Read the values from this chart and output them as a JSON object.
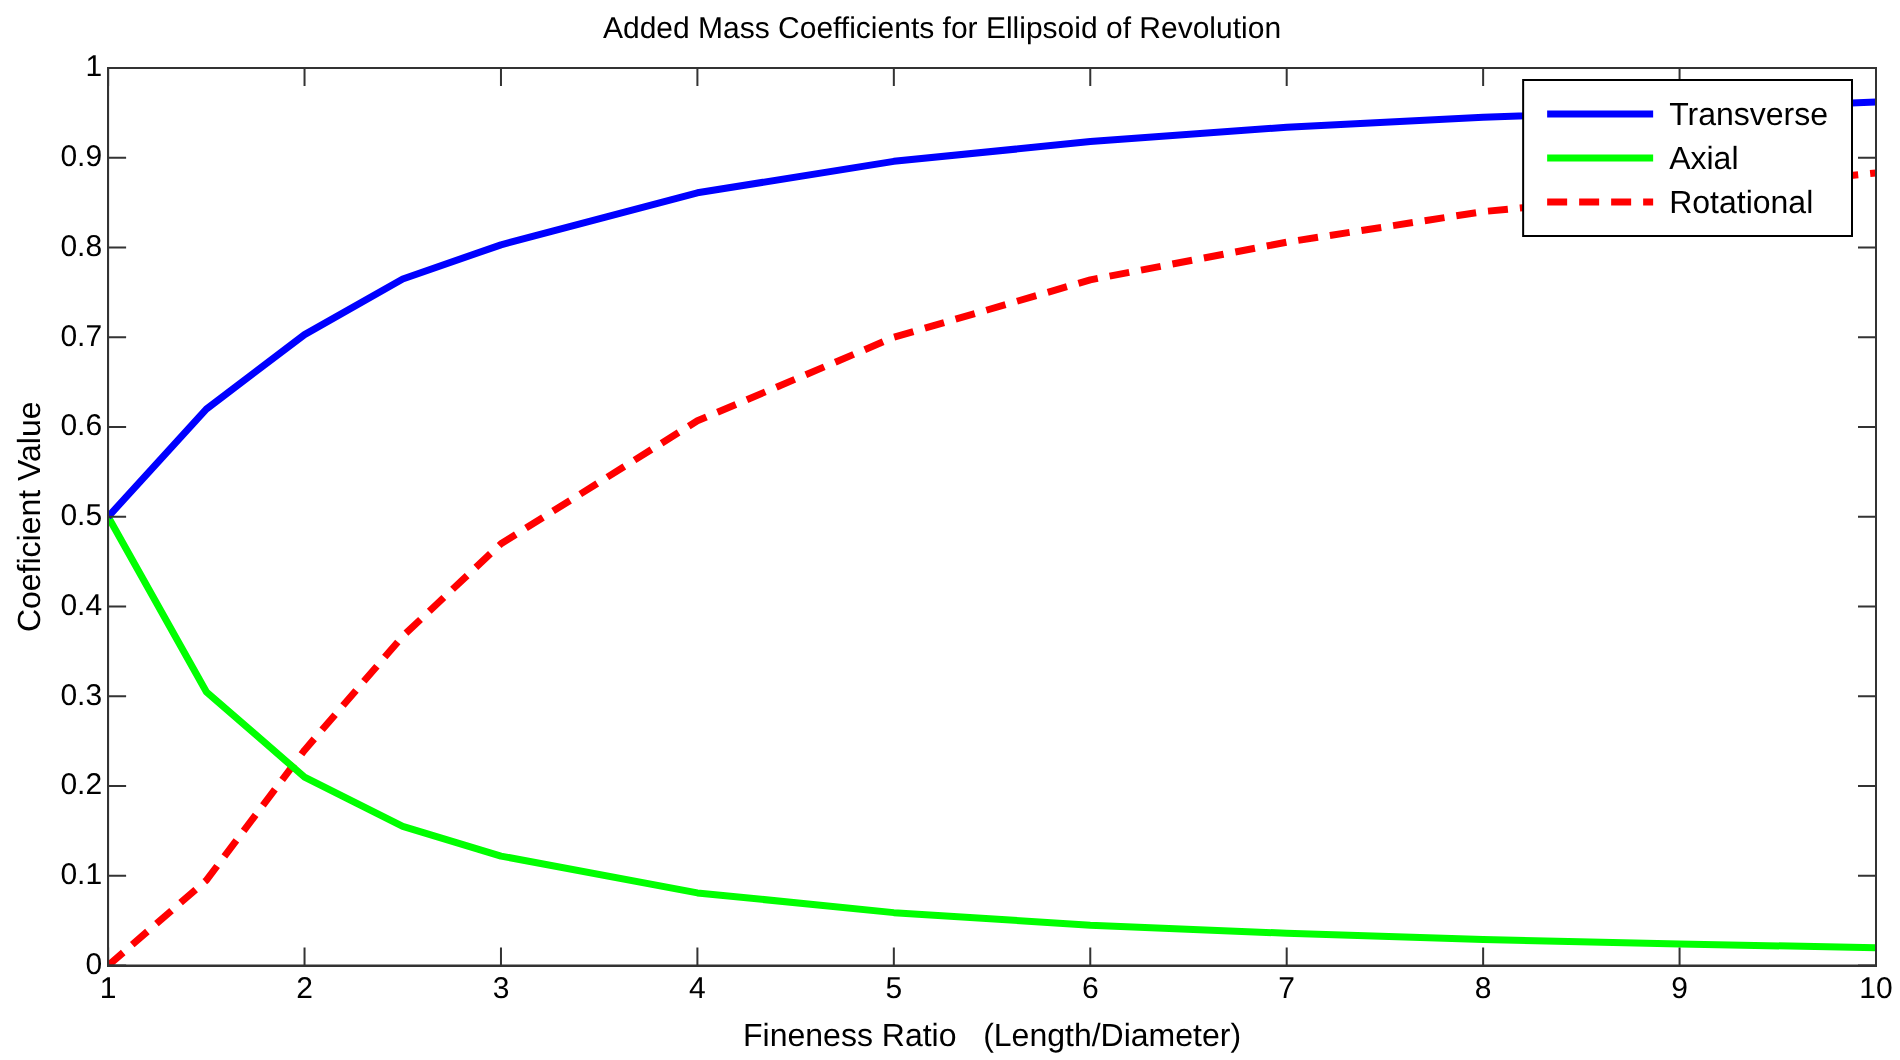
{
  "chart_data": {
    "type": "line",
    "title": "Added Mass Coefficients for Ellipsoid of Revolution",
    "xlabel": "Fineness Ratio   (Length/Diameter)",
    "ylabel": "Coeficient Value",
    "x": [
      1,
      1.5,
      2,
      2.5,
      3,
      4,
      5,
      6,
      7,
      8,
      9,
      10
    ],
    "series": [
      {
        "name": "Transverse",
        "color": "#0000ff",
        "line_style": "solid",
        "values": [
          0.5,
          0.62,
          0.703,
          0.765,
          0.803,
          0.861,
          0.896,
          0.918,
          0.934,
          0.945,
          null,
          0.962
        ]
      },
      {
        "name": "Axial",
        "color": "#00ff00",
        "line_style": "solid",
        "values": [
          0.5,
          0.305,
          0.21,
          0.155,
          0.122,
          0.081,
          0.059,
          0.045,
          0.036,
          0.029,
          0.024,
          0.02
        ]
      },
      {
        "name": "Rotational",
        "color": "#ff0000",
        "line_style": "dashed",
        "values": [
          0,
          0.095,
          0.24,
          0.367,
          0.47,
          0.607,
          0.7,
          0.764,
          0.806,
          0.84,
          null,
          0.883
        ]
      }
    ],
    "xlim": [
      1,
      10
    ],
    "xticks": [
      1,
      2,
      3,
      4,
      5,
      6,
      7,
      8,
      9,
      10
    ],
    "ylim": [
      0,
      1
    ],
    "yticks": [
      0,
      0.1,
      0.2,
      0.3,
      0.4,
      0.5,
      0.6,
      0.7,
      0.8,
      0.9,
      1
    ],
    "grid": false,
    "legend": "top right",
    "marker": "none"
  }
}
